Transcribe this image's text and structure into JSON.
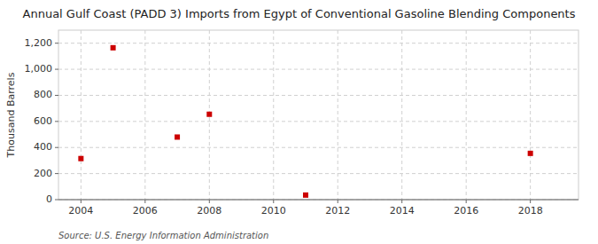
{
  "chart_data": {
    "type": "scatter",
    "title": "Annual Gulf Coast (PADD 3) Imports from Egypt of Conventional Gasoline Blending Components",
    "y_label": "Thousand Barrels",
    "annotations": [
      "Source: U.S. Energy Information Administration"
    ],
    "x": [
      2004,
      2005,
      2007,
      2008,
      2011,
      2018
    ],
    "values": [
      315,
      1165,
      480,
      655,
      35,
      355
    ],
    "color": "#cc0000",
    "marker": "square",
    "xlim": [
      2003.3,
      2019.5
    ],
    "ylim": [
      0,
      1300
    ],
    "xticks": [
      2004,
      2006,
      2008,
      2010,
      2012,
      2014,
      2016,
      2018
    ],
    "yticks": [
      0,
      200,
      400,
      600,
      800,
      {
        "value": 1000,
        "label": "1,000"
      },
      {
        "value": 1200,
        "label": "1,200"
      }
    ],
    "grid": true
  }
}
